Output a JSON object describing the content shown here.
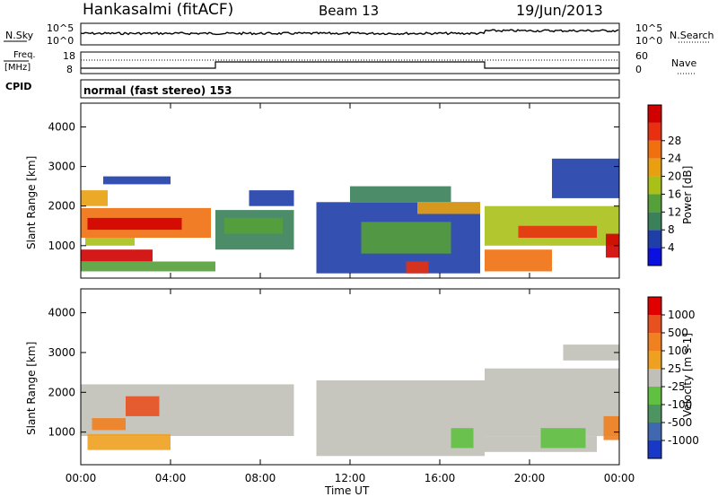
{
  "header": {
    "station": "Hankasalmi (fitACF)",
    "beam": "Beam 13",
    "date": "19/Jun/2013"
  },
  "noise_panel": {
    "left_label": "N.Sky",
    "right_label": "N.Search",
    "left_ticks": [
      "10^5",
      "10^0"
    ],
    "right_ticks": [
      "10^5",
      "10^0"
    ]
  },
  "freq_panel": {
    "left_label_1": "Freq.",
    "left_label_2": "[MHz]",
    "right_label": "Nave",
    "left_ticks": [
      "18",
      "8"
    ],
    "right_ticks": [
      "60",
      "0"
    ]
  },
  "cpid": {
    "label": "CPID",
    "text": "normal (fast stereo) 153"
  },
  "x_axis": {
    "label": "Time UT",
    "ticks": [
      "00:00",
      "04:00",
      "08:00",
      "12:00",
      "16:00",
      "20:00",
      "00:00"
    ]
  },
  "colors": {
    "power": [
      "#0a10e0",
      "#1e3ea8",
      "#3a8058",
      "#55a038",
      "#a8c018",
      "#e8a010",
      "#f07010",
      "#e83010",
      "#d00000"
    ],
    "velocity": [
      "#1838c8",
      "#4068b0",
      "#4e9460",
      "#60c040",
      "#c0c0b8",
      "#f0a020",
      "#f08020",
      "#e85020",
      "#e00000"
    ]
  },
  "chart_data": [
    {
      "type": "heatmap",
      "title": "",
      "xlabel": "Time UT",
      "ylabel": "Slant Range [km]",
      "ylim": [
        180,
        4600
      ],
      "yticks": [
        "1000",
        "2000",
        "3000",
        "4000"
      ],
      "colorbar_label": "Power [dB]",
      "colorbar_ticks": [
        "4",
        "8",
        "12",
        "16",
        "20",
        "24",
        "28"
      ],
      "bands": [
        {
          "t0": 0.0,
          "t1": 3.2,
          "r0": 600,
          "r1": 900,
          "level": 8
        },
        {
          "t0": 0.0,
          "t1": 5.8,
          "r0": 1200,
          "r1": 1950,
          "level": 6
        },
        {
          "t0": 0.3,
          "t1": 4.5,
          "r0": 1400,
          "r1": 1700,
          "level": 8
        },
        {
          "t0": 0.0,
          "t1": 6.0,
          "r0": 350,
          "r1": 600,
          "level": 3
        },
        {
          "t0": 0.0,
          "t1": 1.2,
          "r0": 2000,
          "r1": 2400,
          "level": 5
        },
        {
          "t0": 1.0,
          "t1": 4.0,
          "r0": 2550,
          "r1": 2750,
          "level": 1
        },
        {
          "t0": 0.2,
          "t1": 2.4,
          "r0": 1000,
          "r1": 1200,
          "level": 4
        },
        {
          "t0": 6.0,
          "t1": 9.5,
          "r0": 900,
          "r1": 1900,
          "level": 2
        },
        {
          "t0": 6.4,
          "t1": 9.0,
          "r0": 1300,
          "r1": 1700,
          "level": 3
        },
        {
          "t0": 7.5,
          "t1": 9.5,
          "r0": 2000,
          "r1": 2400,
          "level": 1
        },
        {
          "t0": 10.5,
          "t1": 17.8,
          "r0": 300,
          "r1": 2100,
          "level": 1
        },
        {
          "t0": 12.5,
          "t1": 16.5,
          "r0": 800,
          "r1": 1600,
          "level": 3
        },
        {
          "t0": 12.0,
          "t1": 16.5,
          "r0": 2100,
          "r1": 2500,
          "level": 2
        },
        {
          "t0": 15.0,
          "t1": 17.8,
          "r0": 1800,
          "r1": 2100,
          "level": 5
        },
        {
          "t0": 14.5,
          "t1": 15.5,
          "r0": 300,
          "r1": 600,
          "level": 7
        },
        {
          "t0": 18.0,
          "t1": 24.0,
          "r0": 1000,
          "r1": 2000,
          "level": 4
        },
        {
          "t0": 18.0,
          "t1": 21.0,
          "r0": 350,
          "r1": 900,
          "level": 6
        },
        {
          "t0": 19.5,
          "t1": 23.0,
          "r0": 1200,
          "r1": 1500,
          "level": 7
        },
        {
          "t0": 21.0,
          "t1": 24.0,
          "r0": 2200,
          "r1": 3200,
          "level": 1
        },
        {
          "t0": 23.4,
          "t1": 24.0,
          "r0": 700,
          "r1": 1300,
          "level": 8
        }
      ]
    },
    {
      "type": "heatmap",
      "title": "",
      "xlabel": "Time UT",
      "ylabel": "Slant Range [km]",
      "ylim": [
        180,
        4600
      ],
      "yticks": [
        "1000",
        "2000",
        "3000",
        "4000"
      ],
      "colorbar_label": "Velocity [m s-1]",
      "colorbar_ticks": [
        "1000",
        "500",
        "100",
        "25",
        "-25",
        "-100",
        "-500",
        "-1000"
      ],
      "bands": [
        {
          "t0": 0.0,
          "t1": 9.5,
          "r0": 900,
          "r1": 2200,
          "level": 4
        },
        {
          "t0": 0.3,
          "t1": 4.0,
          "r0": 550,
          "r1": 950,
          "level": 5
        },
        {
          "t0": 0.5,
          "t1": 2.0,
          "r0": 1050,
          "r1": 1350,
          "level": 6
        },
        {
          "t0": 2.0,
          "t1": 3.5,
          "r0": 1400,
          "r1": 1900,
          "level": 7
        },
        {
          "t0": 10.5,
          "t1": 18.0,
          "r0": 400,
          "r1": 2300,
          "level": 4
        },
        {
          "t0": 16.5,
          "t1": 17.5,
          "r0": 600,
          "r1": 1100,
          "level": 3
        },
        {
          "t0": 18.0,
          "t1": 24.0,
          "r0": 900,
          "r1": 2600,
          "level": 4
        },
        {
          "t0": 18.0,
          "t1": 23.0,
          "r0": 500,
          "r1": 900,
          "level": 4
        },
        {
          "t0": 20.5,
          "t1": 22.5,
          "r0": 600,
          "r1": 1100,
          "level": 3
        },
        {
          "t0": 23.3,
          "t1": 24.0,
          "r0": 800,
          "r1": 1400,
          "level": 6
        },
        {
          "t0": 21.5,
          "t1": 24.0,
          "r0": 2800,
          "r1": 3200,
          "level": 4
        }
      ]
    }
  ]
}
